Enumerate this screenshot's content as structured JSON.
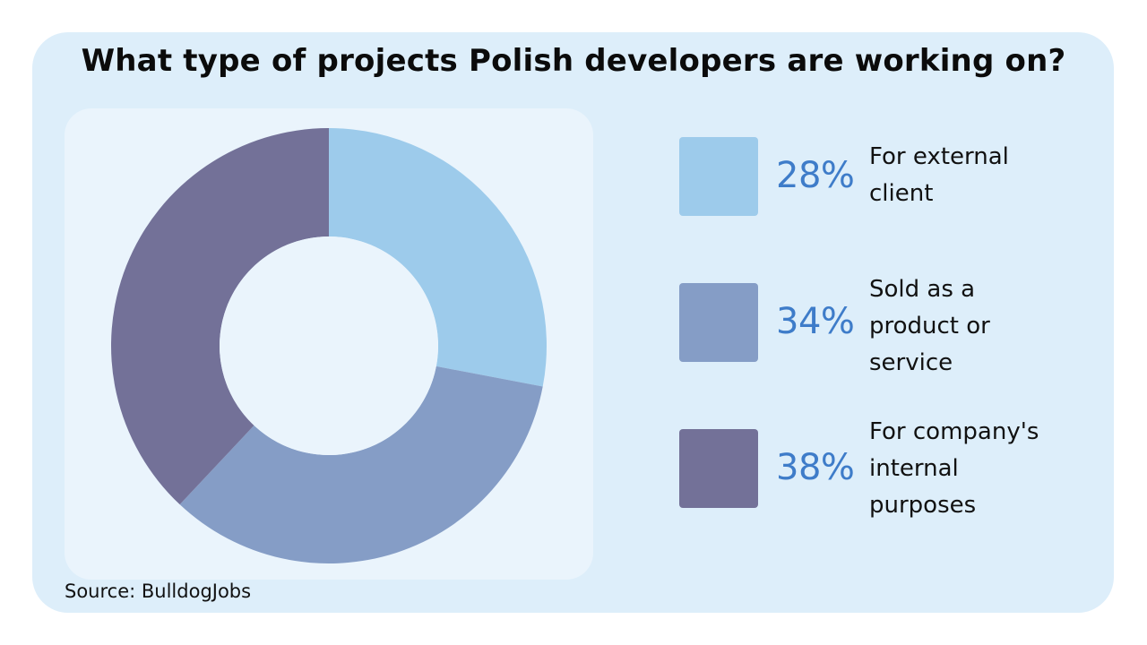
{
  "title": "What type of projects Polish developers are working on?",
  "source": "Source: BulldogJobs",
  "chart_data": {
    "type": "pie",
    "donut": true,
    "categories": [
      "For external client",
      "Sold as a product or service",
      "For company's internal purposes"
    ],
    "values": [
      28,
      34,
      38
    ],
    "value_labels": [
      "28%",
      "34%",
      "38%"
    ],
    "label_lines": [
      [
        "For external",
        "client"
      ],
      [
        "Sold as a",
        "product or",
        "service"
      ],
      [
        "For company's",
        "internal",
        "purposes"
      ]
    ],
    "colors": [
      "#9dcbeb",
      "#859dc6",
      "#737198"
    ],
    "legend_position": "right",
    "start_angle": "12 o'clock, clockwise"
  }
}
